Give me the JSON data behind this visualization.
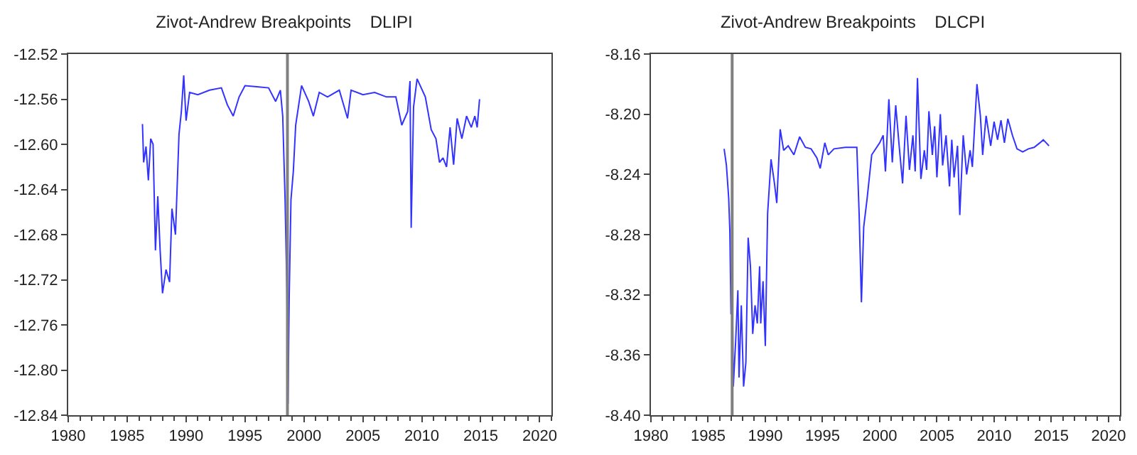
{
  "chart_data": [
    {
      "type": "line",
      "title": "Zivot-Andrew Breakpoints    DLIPI",
      "xlim": [
        1980,
        2021
      ],
      "xticks": [
        1980,
        1985,
        1990,
        1995,
        2000,
        2005,
        2010,
        2015,
        2020
      ],
      "ylim": [
        -12.84,
        -12.52
      ],
      "yticks": [
        -12.84,
        {
          "value": -12.8,
          "label": "-12.80"
        },
        -12.76,
        -12.72,
        -12.68,
        -12.64,
        {
          "value": -12.6,
          "label": "-12.60"
        },
        -12.56,
        -12.52
      ],
      "ref_lines": [
        {
          "axis": "x",
          "value": 1998.6,
          "color": "#808080"
        }
      ],
      "series": [
        {
          "color": "#3333ff",
          "x": [
            1986.3,
            1986.4,
            1986.6,
            1986.8,
            1987.0,
            1987.2,
            1987.4,
            1987.6,
            1987.8,
            1988.0,
            1988.3,
            1988.6,
            1988.8,
            1989.1,
            1989.4,
            1989.6,
            1989.8,
            1990.0,
            1990.3,
            1991,
            1992,
            1993,
            1993.5,
            1994,
            1994.5,
            1995,
            1996,
            1997,
            1997.6,
            1998.0,
            1998.2,
            1998.4,
            1998.55,
            1998.65,
            1998.75,
            1998.9,
            1999.1,
            1999.3,
            1999.8,
            2000.4,
            2000.8,
            2001.3,
            2002,
            2003,
            2003.7,
            2004,
            2005,
            2006,
            2007,
            2007.8,
            2008.3,
            2008.8,
            2009.0,
            2009.1,
            2009.3,
            2009.6,
            2010.3,
            2010.8,
            2011.2,
            2011.5,
            2011.8,
            2012.1,
            2012.4,
            2012.7,
            2013.0,
            2013.4,
            2013.8,
            2014.2,
            2014.5,
            2014.7,
            2014.9
          ],
          "values": [
            -12.582,
            -12.616,
            -12.602,
            -12.632,
            -12.595,
            -12.6,
            -12.694,
            -12.646,
            -12.694,
            -12.732,
            -12.711,
            -12.722,
            -12.657,
            -12.68,
            -12.591,
            -12.571,
            -12.539,
            -12.579,
            -12.554,
            -12.556,
            -12.552,
            -12.55,
            -12.565,
            -12.575,
            -12.558,
            -12.548,
            -12.549,
            -12.55,
            -12.562,
            -12.552,
            -12.575,
            -12.649,
            -12.727,
            -12.83,
            -12.735,
            -12.649,
            -12.624,
            -12.583,
            -12.548,
            -12.562,
            -12.575,
            -12.554,
            -12.558,
            -12.552,
            -12.577,
            -12.552,
            -12.556,
            -12.554,
            -12.558,
            -12.558,
            -12.583,
            -12.571,
            -12.544,
            -12.674,
            -12.567,
            -12.542,
            -12.558,
            -12.587,
            -12.595,
            -12.616,
            -12.612,
            -12.62,
            -12.585,
            -12.618,
            -12.577,
            -12.595,
            -12.575,
            -12.585,
            -12.575,
            -12.585,
            -12.56
          ]
        }
      ]
    },
    {
      "type": "line",
      "title": "Zivot-Andrew Breakpoints    DLCPI",
      "xlim": [
        1980,
        2021
      ],
      "xticks": [
        1980,
        1985,
        1990,
        1995,
        2000,
        2005,
        2010,
        2015,
        2020
      ],
      "ylim": [
        -8.4,
        -8.16
      ],
      "yticks": [
        {
          "value": -8.4,
          "label": "-8.40"
        },
        -8.36,
        -8.32,
        -8.28,
        -8.24,
        {
          "value": -8.2,
          "label": "-8.20"
        },
        -8.16
      ],
      "ref_lines": [
        {
          "axis": "x",
          "value": 1987.1,
          "color": "#808080"
        }
      ],
      "series": [
        {
          "color": "#3333ff",
          "x": [
            1986.4,
            1986.6,
            1986.8,
            1986.9,
            1987.0,
            1987.1,
            1987.2,
            1987.4,
            1987.6,
            1987.7,
            1987.9,
            1988.1,
            1988.3,
            1988.5,
            1988.7,
            1988.9,
            1989.1,
            1989.3,
            1989.5,
            1989.6,
            1989.8,
            1990.0,
            1990.2,
            1990.5,
            1990.8,
            1991.0,
            1991.3,
            1991.6,
            1992,
            1992.5,
            1993,
            1993.5,
            1994,
            1994.5,
            1994.8,
            1995.2,
            1995.5,
            1996,
            1997,
            1998,
            1998.2,
            1998.4,
            1998.6,
            1998.9,
            1999.3,
            2000,
            2000.3,
            2000.5,
            2000.8,
            2001.1,
            2001.4,
            2001.7,
            2002,
            2002.3,
            2002.6,
            2002.9,
            2003.1,
            2003.3,
            2003.6,
            2003.9,
            2004.1,
            2004.3,
            2004.6,
            2004.8,
            2005.0,
            2005.3,
            2005.5,
            2005.8,
            2006.1,
            2006.3,
            2006.5,
            2006.8,
            2007.0,
            2007.3,
            2007.6,
            2007.9,
            2008.1,
            2008.5,
            2008.8,
            2009.0,
            2009.3,
            2009.7,
            2010.0,
            2010.3,
            2010.6,
            2010.9,
            2011.2,
            2011.6,
            2012,
            2012.5,
            2013,
            2013.5,
            2014,
            2014.3,
            2014.8
          ],
          "values": [
            -8.223,
            -8.234,
            -8.256,
            -8.278,
            -8.333,
            -8.307,
            -8.381,
            -8.352,
            -8.317,
            -8.375,
            -8.327,
            -8.381,
            -8.365,
            -8.282,
            -8.301,
            -8.346,
            -8.327,
            -8.339,
            -8.301,
            -8.339,
            -8.311,
            -8.354,
            -8.266,
            -8.23,
            -8.246,
            -8.259,
            -8.21,
            -8.224,
            -8.221,
            -8.227,
            -8.215,
            -8.222,
            -8.223,
            -8.229,
            -8.236,
            -8.219,
            -8.227,
            -8.223,
            -8.222,
            -8.222,
            -8.266,
            -8.325,
            -8.275,
            -8.256,
            -8.227,
            -8.219,
            -8.214,
            -8.238,
            -8.19,
            -8.232,
            -8.194,
            -8.221,
            -8.246,
            -8.201,
            -8.237,
            -8.214,
            -8.238,
            -8.176,
            -8.243,
            -8.224,
            -8.237,
            -8.198,
            -8.227,
            -8.208,
            -8.242,
            -8.2,
            -8.234,
            -8.214,
            -8.248,
            -8.217,
            -8.242,
            -8.221,
            -8.267,
            -8.214,
            -8.24,
            -8.224,
            -8.235,
            -8.18,
            -8.201,
            -8.227,
            -8.201,
            -8.221,
            -8.205,
            -8.217,
            -8.204,
            -8.219,
            -8.203,
            -8.214,
            -8.223,
            -8.225,
            -8.223,
            -8.222,
            -8.219,
            -8.217,
            -8.221
          ]
        }
      ]
    }
  ]
}
